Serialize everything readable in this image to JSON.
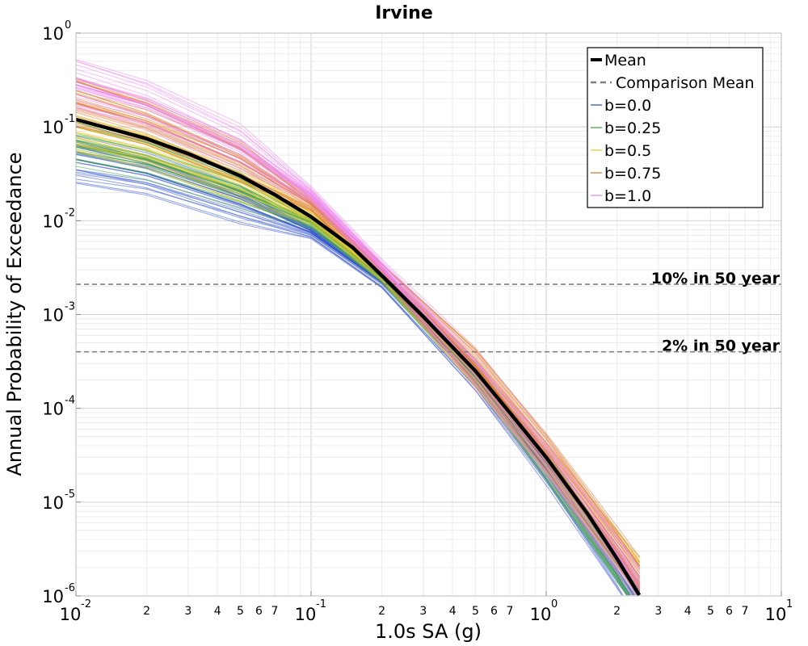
{
  "chart_data": {
    "type": "line",
    "title": "Irvine",
    "xlabel": "1.0s SA (g)",
    "ylabel": "Annual Probability of Exceedance",
    "xscale": "log",
    "yscale": "log",
    "xlim": [
      0.01,
      10
    ],
    "ylim": [
      1e-06,
      1
    ],
    "grid": true,
    "legend_position": "top-right",
    "x_major_ticks": [
      {
        "value": 0.01,
        "base": "10",
        "exp": "-2"
      },
      {
        "value": 0.1,
        "base": "10",
        "exp": "-1"
      },
      {
        "value": 1,
        "base": "10",
        "exp": "0"
      },
      {
        "value": 10,
        "base": "10",
        "exp": "1"
      }
    ],
    "x_minor_tick_labels": [
      "2",
      "3",
      "4",
      "5",
      "6",
      "7"
    ],
    "y_major_ticks": [
      {
        "value": 1,
        "base": "10",
        "exp": "0"
      },
      {
        "value": 0.1,
        "base": "10",
        "exp": "-1"
      },
      {
        "value": 0.01,
        "base": "10",
        "exp": "-2"
      },
      {
        "value": 0.001,
        "base": "10",
        "exp": "-3"
      },
      {
        "value": 0.0001,
        "base": "10",
        "exp": "-4"
      },
      {
        "value": 1e-05,
        "base": "10",
        "exp": "-5"
      },
      {
        "value": 1e-06,
        "base": "10",
        "exp": "-6"
      }
    ],
    "reference_lines": [
      {
        "label": "10% in 50 year",
        "y": 0.0021,
        "color": "#808080",
        "style": "dashed"
      },
      {
        "label": "2% in 50 year",
        "y": 0.0004,
        "color": "#808080",
        "style": "dashed"
      }
    ],
    "series": [
      {
        "name": "Mean",
        "color": "#000000",
        "style": "solid",
        "x": [
          0.01,
          0.02,
          0.03,
          0.05,
          0.07,
          0.1,
          0.15,
          0.2,
          0.3,
          0.5,
          0.7,
          1.0,
          1.5,
          2.0,
          2.5
        ],
        "y": [
          0.12,
          0.075,
          0.052,
          0.03,
          0.019,
          0.011,
          0.0052,
          0.0026,
          0.00095,
          0.00025,
          9e-05,
          3e-05,
          7.5e-06,
          2.5e-06,
          1e-06
        ]
      },
      {
        "name": "Comparison Mean",
        "color": "#808080",
        "style": "dashed",
        "x": [],
        "y": []
      },
      {
        "name": "b=0.0",
        "color": "#3355cc",
        "style": "solid",
        "x": [
          0.01,
          0.02,
          0.05,
          0.1,
          0.2,
          0.5,
          1.0,
          2.0,
          2.5
        ],
        "y": [
          0.045,
          0.032,
          0.015,
          0.0075,
          0.0022,
          0.00022,
          2.2e-05,
          1.8e-06,
          8e-07
        ]
      },
      {
        "name": "b=0.25",
        "color": "#44aa44",
        "style": "solid",
        "x": [
          0.01,
          0.02,
          0.05,
          0.1,
          0.2,
          0.5,
          1.0,
          2.0,
          2.5
        ],
        "y": [
          0.065,
          0.045,
          0.021,
          0.0095,
          0.0025,
          0.00024,
          2.5e-05,
          2.2e-06,
          1e-06
        ]
      },
      {
        "name": "b=0.5",
        "color": "#e6c832",
        "style": "solid",
        "x": [
          0.01,
          0.02,
          0.05,
          0.1,
          0.2,
          0.5,
          1.0,
          2.0,
          2.5
        ],
        "y": [
          0.1,
          0.065,
          0.027,
          0.011,
          0.0027,
          0.00027,
          3.2e-05,
          3.2e-06,
          1.5e-06
        ]
      },
      {
        "name": "b=0.75",
        "color": "#e07a30",
        "style": "solid",
        "x": [
          0.01,
          0.02,
          0.05,
          0.1,
          0.2,
          0.5,
          1.0,
          2.0,
          2.5
        ],
        "y": [
          0.18,
          0.11,
          0.042,
          0.015,
          0.003,
          0.00028,
          3.5e-05,
          3.5e-06,
          1.6e-06
        ]
      },
      {
        "name": "b=1.0",
        "color": "#ee88ee",
        "style": "solid",
        "x": [
          0.01,
          0.02,
          0.05,
          0.1,
          0.2,
          0.5,
          1.0,
          2.0,
          2.5
        ],
        "y": [
          0.28,
          0.17,
          0.06,
          0.019,
          0.0032,
          0.00026,
          3e-05,
          2.8e-06,
          1.2e-06
        ]
      }
    ]
  }
}
